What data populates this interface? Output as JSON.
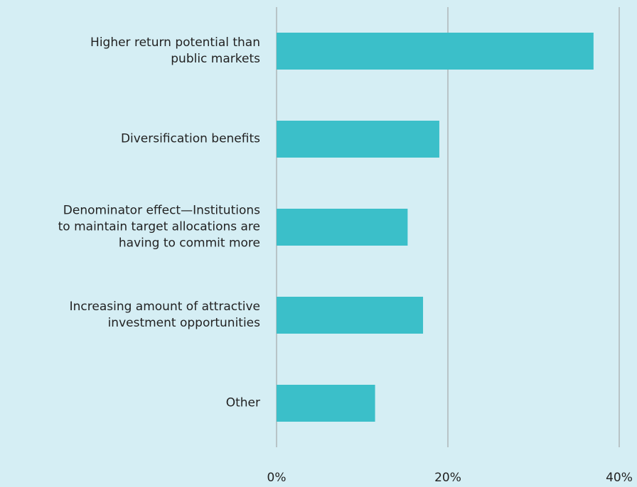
{
  "chart_data": {
    "type": "bar",
    "orientation": "horizontal",
    "categories": [
      "Higher return potential than\npublic markets",
      "Diversification benefits",
      "Denominator effect—Institutions\nto maintain target allocations are\nhaving to commit more",
      "Increasing amount of attractive\ninvestment opportunities",
      "Other"
    ],
    "values": [
      37,
      19,
      15.3,
      17.1,
      11.5
    ],
    "color": "#3bbfc9",
    "xlim": [
      0,
      40
    ],
    "xticks": [
      {
        "value": 0,
        "label": "0%"
      },
      {
        "value": 20,
        "label": "20%"
      },
      {
        "value": 40,
        "label": "40%"
      }
    ],
    "grid": true
  }
}
